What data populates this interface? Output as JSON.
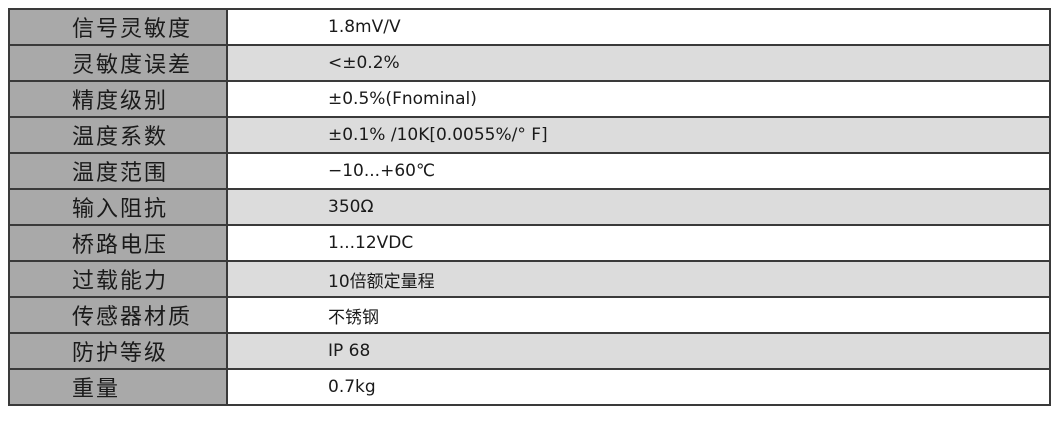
{
  "spec_table": {
    "rows": [
      {
        "label": "信号灵敏度",
        "value": "1.8mV/V"
      },
      {
        "label": "灵敏度误差",
        "value": "<±0.2%"
      },
      {
        "label": "精度级别",
        "value": "±0.5%(Fnominal)"
      },
      {
        "label": "温度系数",
        "value": "±0.1% /10K[0.0055%/° F]"
      },
      {
        "label": "温度范围",
        "value": "−10...+60℃"
      },
      {
        "label": "输入阻抗",
        "value": "350Ω"
      },
      {
        "label": "桥路电压",
        "value": "1...12VDC"
      },
      {
        "label": "过载能力",
        "value": "10倍额定量程"
      },
      {
        "label": "传感器材质",
        "value": "不锈钢"
      },
      {
        "label": "防护等级",
        "value": "IP 68"
      },
      {
        "label": "重量",
        "value": "0.7kg"
      }
    ]
  },
  "colors": {
    "label_bg": "#a9a9a9",
    "alt_row_bg": "#dcdcdc",
    "border": "#3a3a3a"
  }
}
